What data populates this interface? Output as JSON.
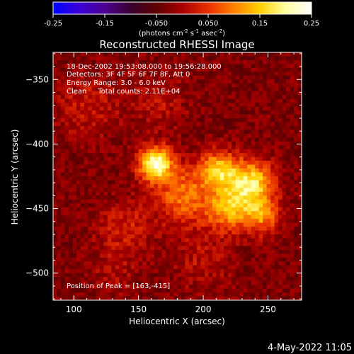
{
  "colorbar": {
    "ticks": [
      "-0.25",
      "-0.15",
      "-0.050",
      "0.050",
      "0.15",
      "0.25"
    ],
    "tick_values": [
      -0.25,
      -0.15,
      -0.05,
      0.05,
      0.15,
      0.25
    ],
    "units_main": "(photons cm",
    "units_sup1": "-2",
    "units_s": " s",
    "units_sup2": "-1",
    "units_asec": " asec",
    "units_sup3": "-2",
    "units_close": ")",
    "range": [
      -0.25,
      0.25
    ],
    "colormap": [
      "#0000ff",
      "#3a00d8",
      "#4d0090",
      "#3a0030",
      "#600000",
      "#a80000",
      "#e83000",
      "#ff8000",
      "#ffd000",
      "#ffffa0",
      "#ffffff"
    ]
  },
  "info": {
    "time": "18-Dec-2002 19:53:08.000 to 19:56:28.000",
    "detectors": "Detectors: 3F 4F 5F 6F 7F 8F, Att 0",
    "energy": "Energy Range: 3.0 - 6.0 keV",
    "method": "Clean     Total counts: 2.11E+04",
    "peak": "Position of Peak = [163,-415]"
  },
  "footer_date": "4-May-2022 11:05",
  "chart_data": {
    "type": "heatmap",
    "title": "Reconstructed RHESSI Image",
    "xlabel": "Heliocentric X (arcsec)",
    "ylabel": "Heliocentric Y (arcsec)",
    "xlim": [
      84,
      276
    ],
    "ylim": [
      -521,
      -329
    ],
    "x_ticks": [
      100,
      150,
      200,
      250
    ],
    "x_tick_labels": [
      "100",
      "150",
      "200",
      "250"
    ],
    "y_ticks": [
      -500,
      -450,
      -400,
      -350
    ],
    "y_tick_labels": [
      "−500",
      "−450",
      "−400",
      "−350"
    ],
    "sources": [
      {
        "x": 163,
        "y": -415,
        "peak": 0.25,
        "sigma": 9
      },
      {
        "x": 237,
        "y": -430,
        "peak": 0.2,
        "sigma": 12
      },
      {
        "x": 212,
        "y": -420,
        "peak": 0.17,
        "sigma": 10
      },
      {
        "x": 220,
        "y": -450,
        "peak": 0.15,
        "sigma": 12
      },
      {
        "x": 245,
        "y": -455,
        "peak": 0.13,
        "sigma": 10
      },
      {
        "x": 185,
        "y": -440,
        "peak": 0.12,
        "sigma": 16
      },
      {
        "x": 140,
        "y": -465,
        "peak": 0.06,
        "sigma": 14
      },
      {
        "x": 110,
        "y": -370,
        "peak": 0.05,
        "sigma": 18
      },
      {
        "x": 165,
        "y": -365,
        "peak": 0.04,
        "sigma": 16
      },
      {
        "x": 200,
        "y": -490,
        "peak": 0.04,
        "sigma": 16
      },
      {
        "x": 130,
        "y": -500,
        "peak": 0.03,
        "sigma": 14
      }
    ],
    "background": -0.03
  }
}
